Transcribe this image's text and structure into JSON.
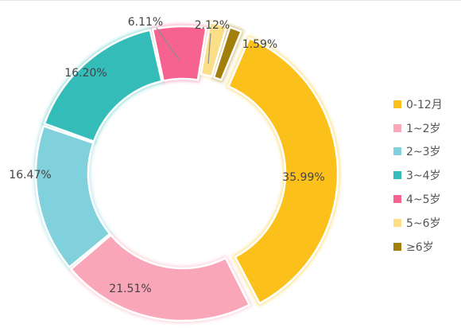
{
  "chart_data": {
    "type": "pie",
    "categories": [
      "0-12月",
      "1~2岁",
      "2~3岁",
      "3~4岁",
      "4~5岁",
      "5~6岁",
      "≥6岁"
    ],
    "values": [
      35.99,
      21.51,
      16.47,
      16.2,
      6.11,
      2.12,
      1.59
    ],
    "labels": [
      "35.99%",
      "21.51%",
      "16.47%",
      "16.20%",
      "6.11%",
      "2.12%",
      "1.59%"
    ],
    "colors": [
      "#FBC11A",
      "#F9A6B8",
      "#80D1DB",
      "#34BCB9",
      "#F76391",
      "#FADF88",
      "#A27E0B"
    ],
    "donut": true,
    "legend_position": "right"
  }
}
